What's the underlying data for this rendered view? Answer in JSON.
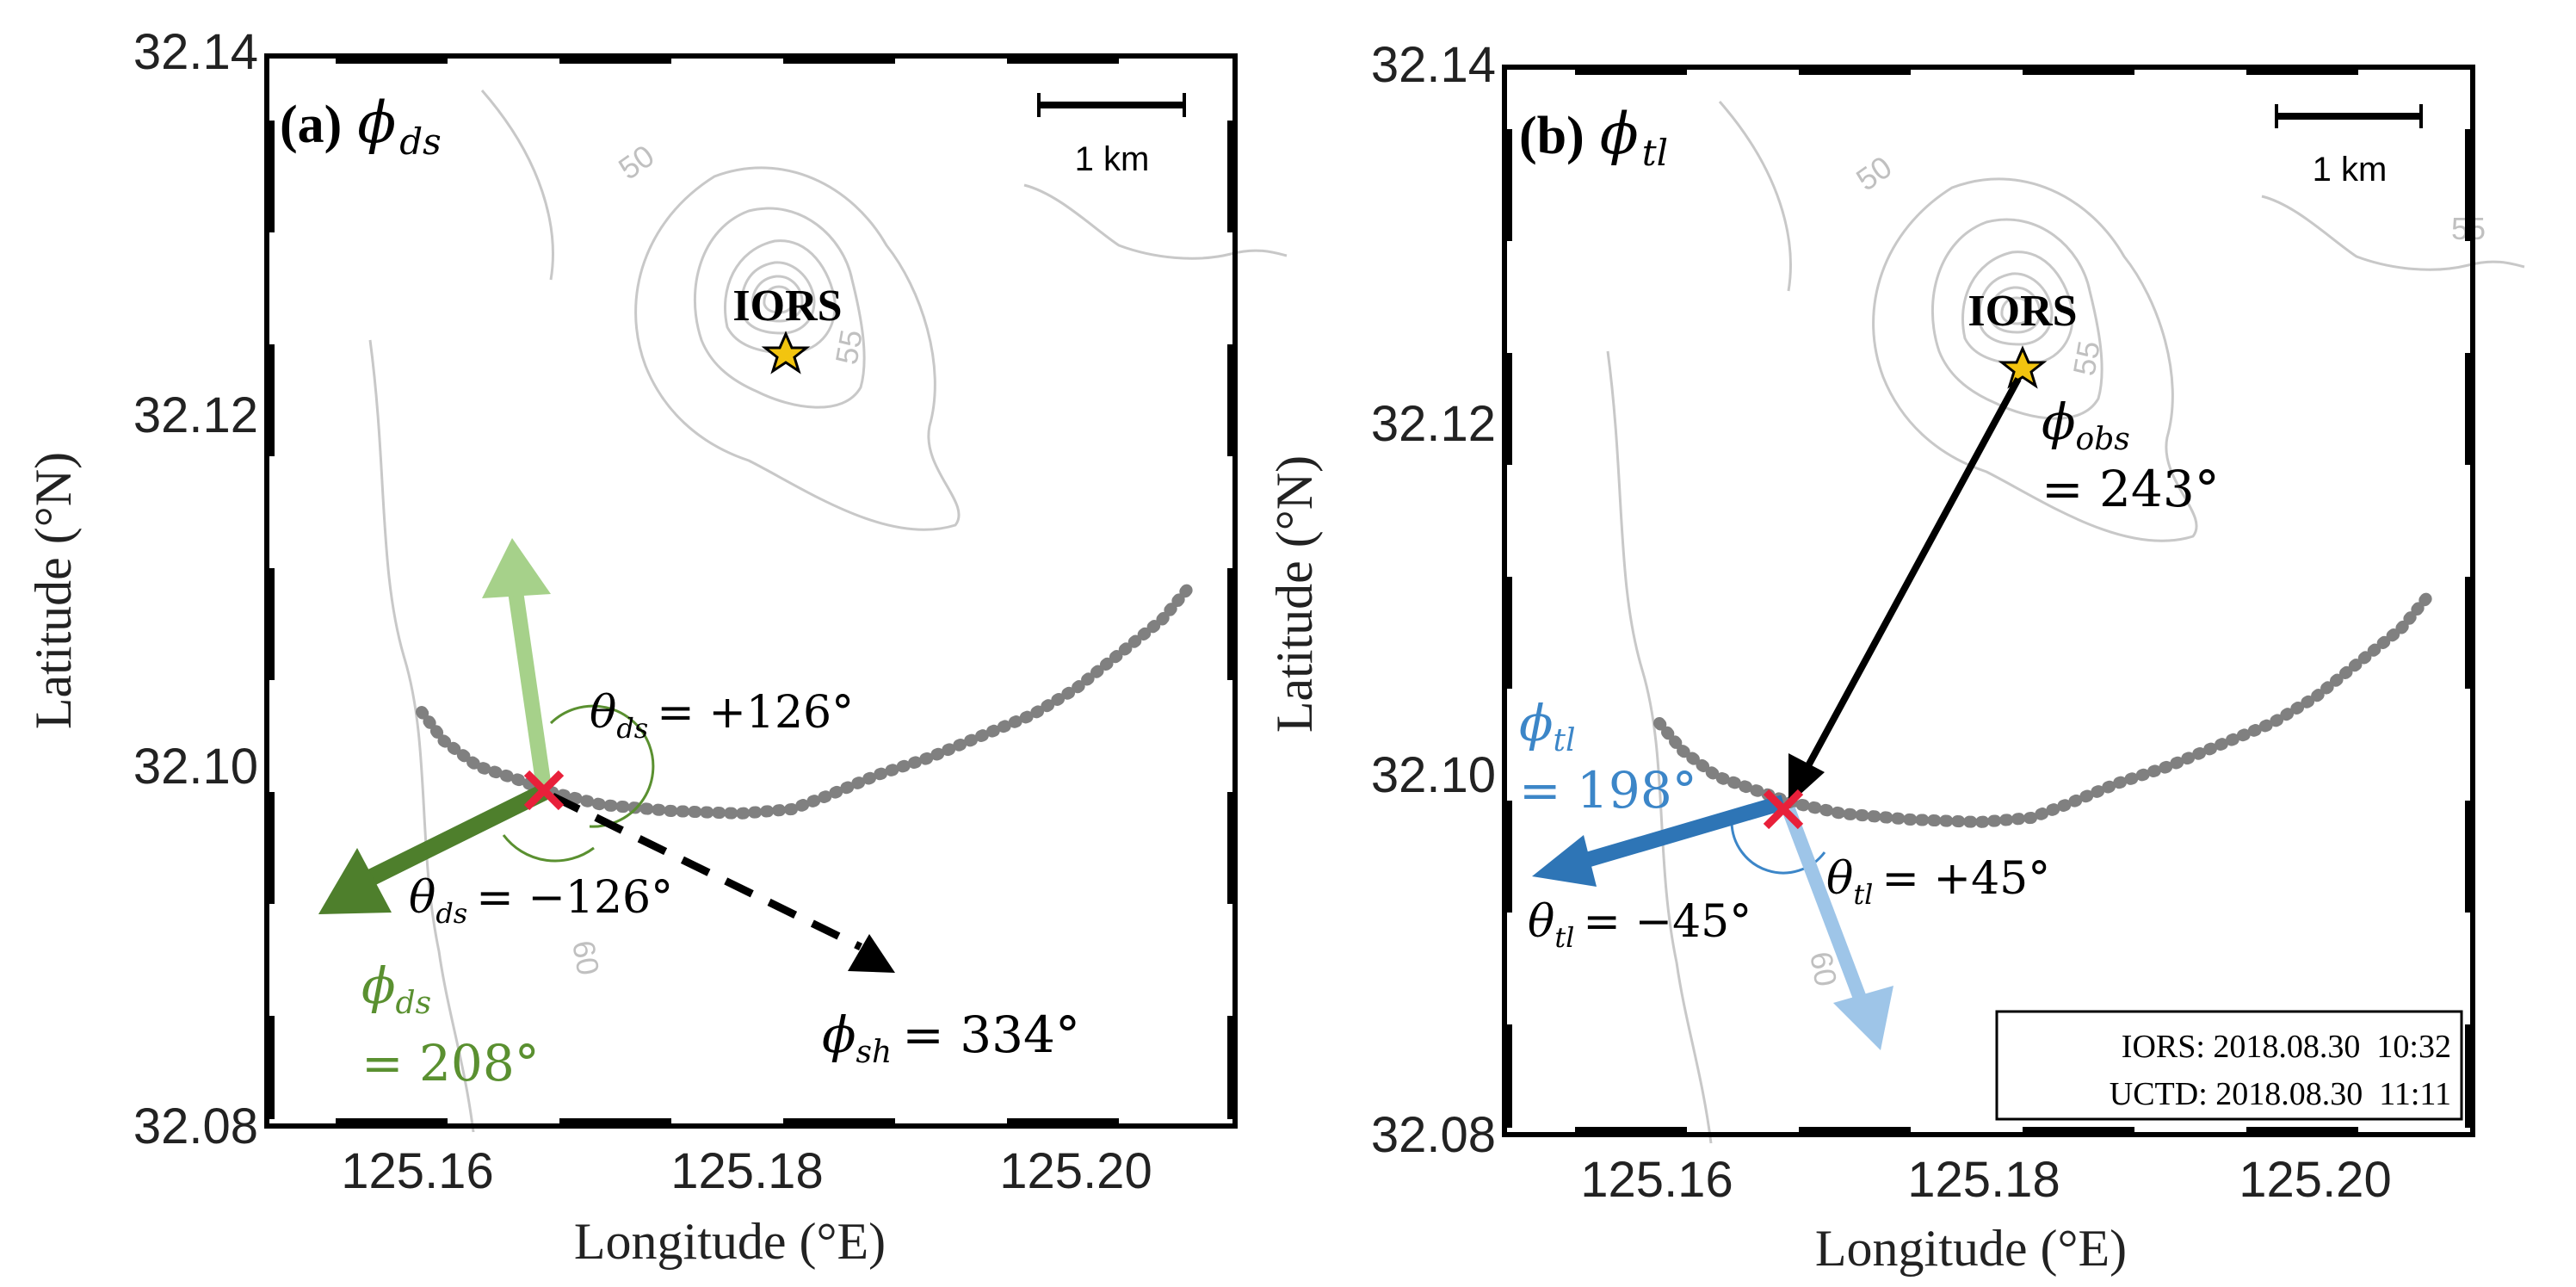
{
  "axes": {
    "x_ticks": [
      "125.16",
      "125.18",
      "125.20"
    ],
    "y_ticks": [
      "32.14",
      "32.12",
      "32.10",
      "32.08"
    ],
    "xlabel": "Longitude (°E)",
    "ylabel": "Latitude (°N)"
  },
  "map": {
    "scale_bar": "1 km",
    "station": "IORS",
    "contour_labels": [
      "50",
      "55",
      "50",
      "60"
    ],
    "colors": {
      "frame": "#000000",
      "contour": "#c8c8c8",
      "track": "#808080",
      "station_fill": "#f2c40f",
      "intersection_marker": "#e8203a"
    }
  },
  "panel_a": {
    "label": "(a)",
    "title_symbol": "ϕ",
    "title_sub": "ds",
    "theta_pos": {
      "symbol": "θ",
      "sub": "ds",
      "value": "= +126°"
    },
    "theta_neg": {
      "symbol": "θ",
      "sub": "ds",
      "value": "= −126°"
    },
    "phi_ds": {
      "symbol": "ϕ",
      "sub": "ds",
      "value": "= 208°"
    },
    "phi_sh": {
      "symbol": "ϕ",
      "sub": "sh",
      "value": "= 334°"
    },
    "colors": {
      "light_arrow": "#a6d18a",
      "dark_arrow": "#4e7f2c",
      "phi_ds_text": "#5a9030"
    }
  },
  "panel_b": {
    "label": "(b)",
    "title_symbol": "ϕ",
    "title_sub": "tl",
    "phi_obs": {
      "symbol": "ϕ",
      "sub": "obs",
      "value": "= 243°"
    },
    "phi_tl": {
      "symbol": "ϕ",
      "sub": "tl",
      "value": "= 198°"
    },
    "theta_pos": {
      "symbol": "θ",
      "sub": "tl",
      "value": "= +45°"
    },
    "theta_neg": {
      "symbol": "θ",
      "sub": "tl",
      "value": "= −45°"
    },
    "info_lines": [
      "IORS: 2018.08.30  10:32",
      "UCTD: 2018.08.30  11:11"
    ],
    "colors": {
      "light_arrow": "#9ec5e8",
      "dark_arrow": "#2e75b6",
      "phi_tl_text": "#3c86c8"
    }
  }
}
